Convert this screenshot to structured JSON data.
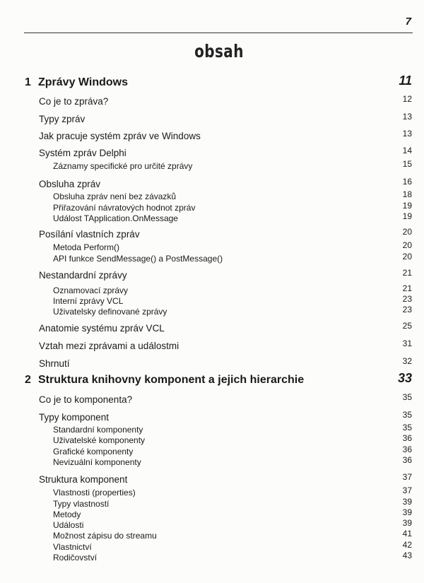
{
  "page_number": "7",
  "title": "obsah",
  "entries": [
    {
      "level": 0,
      "num": "1",
      "text": "Zprávy Windows",
      "page": "11"
    },
    {
      "level": 1,
      "text": "Co je to zpráva?",
      "page": "12"
    },
    {
      "level": 1,
      "text": "Typy zpráv",
      "page": "13"
    },
    {
      "level": 1,
      "text": "Jak pracuje systém zpráv ve Windows",
      "page": "13"
    },
    {
      "level": 1,
      "text": "Systém zpráv Delphi",
      "page": "14"
    },
    {
      "level": 2,
      "text": "Záznamy specifické pro určité zprávy",
      "page": "15"
    },
    {
      "level": 1,
      "text": "Obsluha zpráv",
      "page": "16"
    },
    {
      "level": 2,
      "text": "Obsluha zpráv není bez závazků",
      "page": "18"
    },
    {
      "level": 2,
      "text": "Přiřazování návratových hodnot zpráv",
      "page": "19"
    },
    {
      "level": 2,
      "text": "Událost TApplication.OnMessage",
      "page": "19"
    },
    {
      "level": 1,
      "text": "Posílání vlastních zpráv",
      "page": "20"
    },
    {
      "level": 2,
      "text": "Metoda Perform()",
      "page": "20"
    },
    {
      "level": 2,
      "text": "API funkce SendMessage() a PostMessage()",
      "page": "20"
    },
    {
      "level": 1,
      "text": "Nestandardní zprávy",
      "page": "21"
    },
    {
      "level": 2,
      "text": "Oznamovací zprávy",
      "page": "21"
    },
    {
      "level": 2,
      "text": "Interní zprávy VCL",
      "page": "23"
    },
    {
      "level": 2,
      "text": "Uživatelsky definované zprávy",
      "page": "23"
    },
    {
      "level": 1,
      "text": "Anatomie systému zpráv VCL",
      "page": "25"
    },
    {
      "level": 1,
      "text": "Vztah mezi zprávami a událostmi",
      "page": "31"
    },
    {
      "level": 1,
      "text": "Shrnutí",
      "page": "32"
    },
    {
      "level": 0,
      "num": "2",
      "text": "Struktura knihovny komponent a jejich hierarchie",
      "page": "33"
    },
    {
      "level": 1,
      "text": "Co je to komponenta?",
      "page": "35"
    },
    {
      "level": 1,
      "text": "Typy komponent",
      "page": "35"
    },
    {
      "level": 2,
      "text": "Standardní komponenty",
      "page": "35"
    },
    {
      "level": 2,
      "text": "Uživatelské komponenty",
      "page": "36"
    },
    {
      "level": 2,
      "text": "Grafické komponenty",
      "page": "36"
    },
    {
      "level": 2,
      "text": "Nevizuální komponenty",
      "page": "36"
    },
    {
      "level": 1,
      "text": "Struktura komponent",
      "page": "37"
    },
    {
      "level": 2,
      "text": "Vlastnosti (properties)",
      "page": "37"
    },
    {
      "level": 2,
      "text": "Typy vlastností",
      "page": "39"
    },
    {
      "level": 2,
      "text": "Metody",
      "page": "39"
    },
    {
      "level": 2,
      "text": "Události",
      "page": "39"
    },
    {
      "level": 2,
      "text": "Možnost zápisu do streamu",
      "page": "41"
    },
    {
      "level": 2,
      "text": "Vlastnictví",
      "page": "42"
    },
    {
      "level": 2,
      "text": "Rodičovství",
      "page": "43"
    }
  ]
}
